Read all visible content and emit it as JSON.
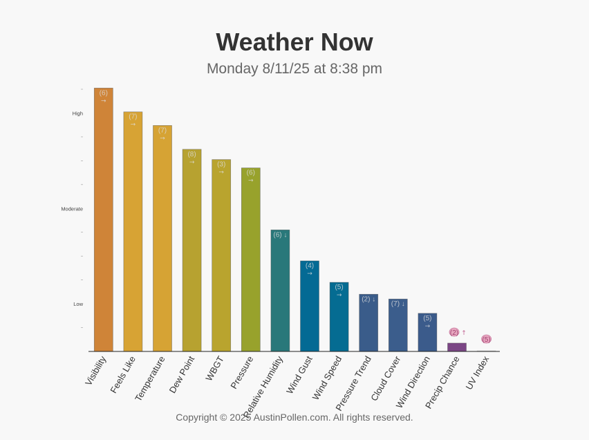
{
  "header": {
    "title": "Weather Now",
    "subtitle": "Monday 8/11/25 at 8:38 pm"
  },
  "footer": {
    "copyright": "Copyright © 2025 AustinPollen.com.  All rights reserved."
  },
  "chart_data": {
    "type": "bar",
    "title": "Weather Now",
    "subtitle": "Monday 8/11/25 at 8:38 pm",
    "ylim": [
      0,
      11
    ],
    "ytick_labels": [
      {
        "value": 2,
        "label": "Low"
      },
      {
        "value": 6,
        "label": "Moderate"
      },
      {
        "value": 10,
        "label": "High"
      }
    ],
    "minor_ticks": [
      1,
      3,
      4,
      5,
      7,
      8,
      9,
      11
    ],
    "grid": false,
    "legend": "none",
    "categories": [
      "Visibility",
      "Feels Like",
      "Temperature",
      "Dew Point",
      "WBGT",
      "Pressure",
      "Relative Humidity",
      "Wind Gust",
      "Wind Speed",
      "Pressure Trend",
      "Cloud Cover",
      "Wind Direction",
      "Precip Chance",
      "UV Index"
    ],
    "values": [
      11.05,
      10.05,
      9.48,
      8.48,
      8.05,
      7.7,
      5.1,
      3.8,
      2.9,
      2.4,
      2.2,
      1.6,
      0.35,
      0.03
    ],
    "labels": [
      "(6)",
      "(7)",
      "(7)",
      "(8)",
      "(3)",
      "(6)",
      "(6)",
      "(4)",
      "(5)",
      "(2)",
      "(7)",
      "(5)",
      "(2)",
      "(5)"
    ],
    "arrows": [
      "→",
      "→",
      "→",
      "→",
      "→",
      "→",
      "↓",
      "→",
      "→",
      "↓",
      "↓",
      "→",
      "↑",
      ""
    ],
    "colors": [
      "#cf8438",
      "#d7a334",
      "#d6a334",
      "#b7a230",
      "#b9a42e",
      "#98a22c",
      "#29787a",
      "#046a94",
      "#056c92",
      "#3a5c8a",
      "#3b5d8c",
      "#3b5b8b",
      "#7b4685",
      "#cccccc"
    ]
  }
}
